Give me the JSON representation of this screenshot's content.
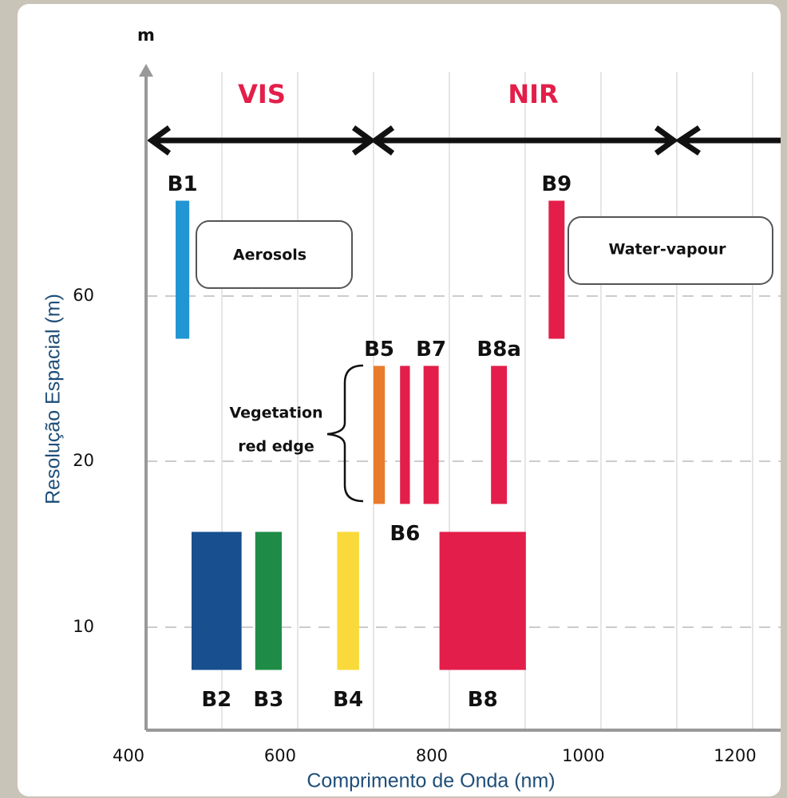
{
  "chart_data": {
    "type": "band",
    "y_axis_unit": "m",
    "ylabel": "Resolução Espacial (m)",
    "xlabel": "Comprimento de Onda (nm)",
    "xlim": [
      400,
      1237
    ],
    "xticks": [
      400,
      600,
      800,
      1000,
      1200
    ],
    "ycategories": [
      10,
      20,
      60
    ],
    "regions": [
      "VIS",
      "NIR"
    ],
    "annotations": {
      "aerosols": "Aerosols",
      "water_vapour": "Water-vapour",
      "red_edge_1": "Vegetation",
      "red_edge_2": "red edge"
    },
    "bands": [
      {
        "name": "B1",
        "color": "#2196d3",
        "range": [
          439,
          457
        ],
        "resolution": 60
      },
      {
        "name": "B2",
        "color": "#174f8f",
        "range": [
          460,
          526
        ],
        "resolution": 10
      },
      {
        "name": "B3",
        "color": "#1e8c47",
        "range": [
          544,
          579
        ],
        "resolution": 10
      },
      {
        "name": "B4",
        "color": "#fada3a",
        "range": [
          652,
          681
        ],
        "resolution": 10
      },
      {
        "name": "B5",
        "color": "#e87b2c",
        "range": [
          700,
          715
        ],
        "resolution": 20
      },
      {
        "name": "B6",
        "color": "#e31e4a",
        "range": [
          735,
          748
        ],
        "resolution": 20
      },
      {
        "name": "B7",
        "color": "#e31e4a",
        "range": [
          766,
          786
        ],
        "resolution": 20
      },
      {
        "name": "B8",
        "color": "#e31e4a",
        "range": [
          787,
          901
        ],
        "resolution": 10
      },
      {
        "name": "B8a",
        "color": "#e31e4a",
        "range": [
          855,
          876
        ],
        "resolution": 20
      },
      {
        "name": "B9",
        "color": "#e31e4a",
        "range": [
          931,
          952
        ],
        "resolution": 60
      }
    ]
  }
}
